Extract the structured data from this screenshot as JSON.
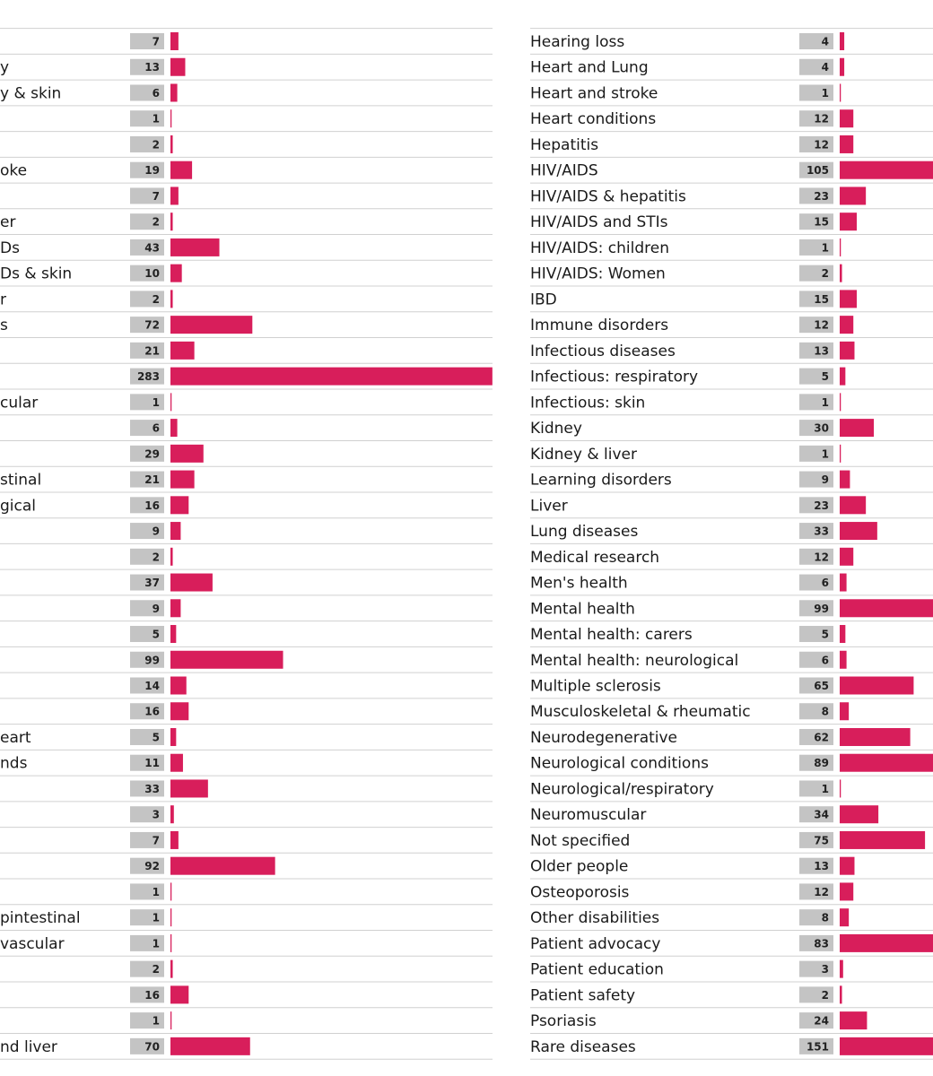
{
  "chart_data": [
    {
      "type": "bar",
      "orientation": "horizontal",
      "color": "#d81e5b",
      "categories": [
        null,
        "y",
        "y & skin",
        null,
        null,
        "oke",
        null,
        "er",
        "Ds",
        "Ds & skin",
        "r",
        "s",
        null,
        null,
        "cular",
        null,
        null,
        "stinal",
        "gical",
        null,
        null,
        null,
        null,
        null,
        null,
        null,
        null,
        "eart",
        "nds",
        null,
        null,
        null,
        null,
        null,
        "pintestinal",
        "vascular",
        null,
        null,
        null,
        "nd liver"
      ],
      "values": [
        7,
        13,
        6,
        1,
        2,
        19,
        7,
        2,
        43,
        10,
        2,
        72,
        21,
        283,
        1,
        6,
        29,
        21,
        16,
        9,
        2,
        37,
        9,
        5,
        99,
        14,
        16,
        5,
        11,
        33,
        3,
        7,
        92,
        1,
        1,
        1,
        2,
        16,
        1,
        70
      ]
    },
    {
      "type": "bar",
      "orientation": "horizontal",
      "color": "#d81e5b",
      "categories": [
        "Hearing loss",
        "Heart and Lung",
        "Heart and stroke",
        "Heart conditions",
        "Hepatitis",
        "HIV/AIDS",
        "HIV/AIDS & hepatitis",
        "HIV/AIDS and STIs",
        "HIV/AIDS: children",
        "HIV/AIDS: Women",
        "IBD",
        "Immune disorders",
        "Infectious diseases",
        "Infectious: respiratory",
        "Infectious: skin",
        "Kidney",
        "Kidney & liver",
        "Learning disorders",
        "Liver",
        "Lung diseases",
        "Medical research",
        "Men's health",
        "Mental health",
        "Mental health: carers",
        "Mental health: neurological",
        "Multiple sclerosis",
        "Musculoskeletal & rheumatic",
        "Neurodegenerative",
        "Neurological conditions",
        "Neurological/respiratory",
        "Neuromuscular",
        "Not specified",
        "Older people",
        "Osteoporosis",
        "Other disabilities",
        "Patient advocacy",
        "Patient education",
        "Patient safety",
        "Psoriasis",
        "Rare diseases"
      ],
      "values": [
        4,
        4,
        1,
        12,
        12,
        105,
        23,
        15,
        1,
        2,
        15,
        12,
        13,
        5,
        1,
        30,
        1,
        9,
        23,
        33,
        12,
        6,
        99,
        5,
        6,
        65,
        8,
        62,
        89,
        1,
        34,
        75,
        13,
        12,
        8,
        83,
        3,
        2,
        24,
        151
      ]
    }
  ]
}
